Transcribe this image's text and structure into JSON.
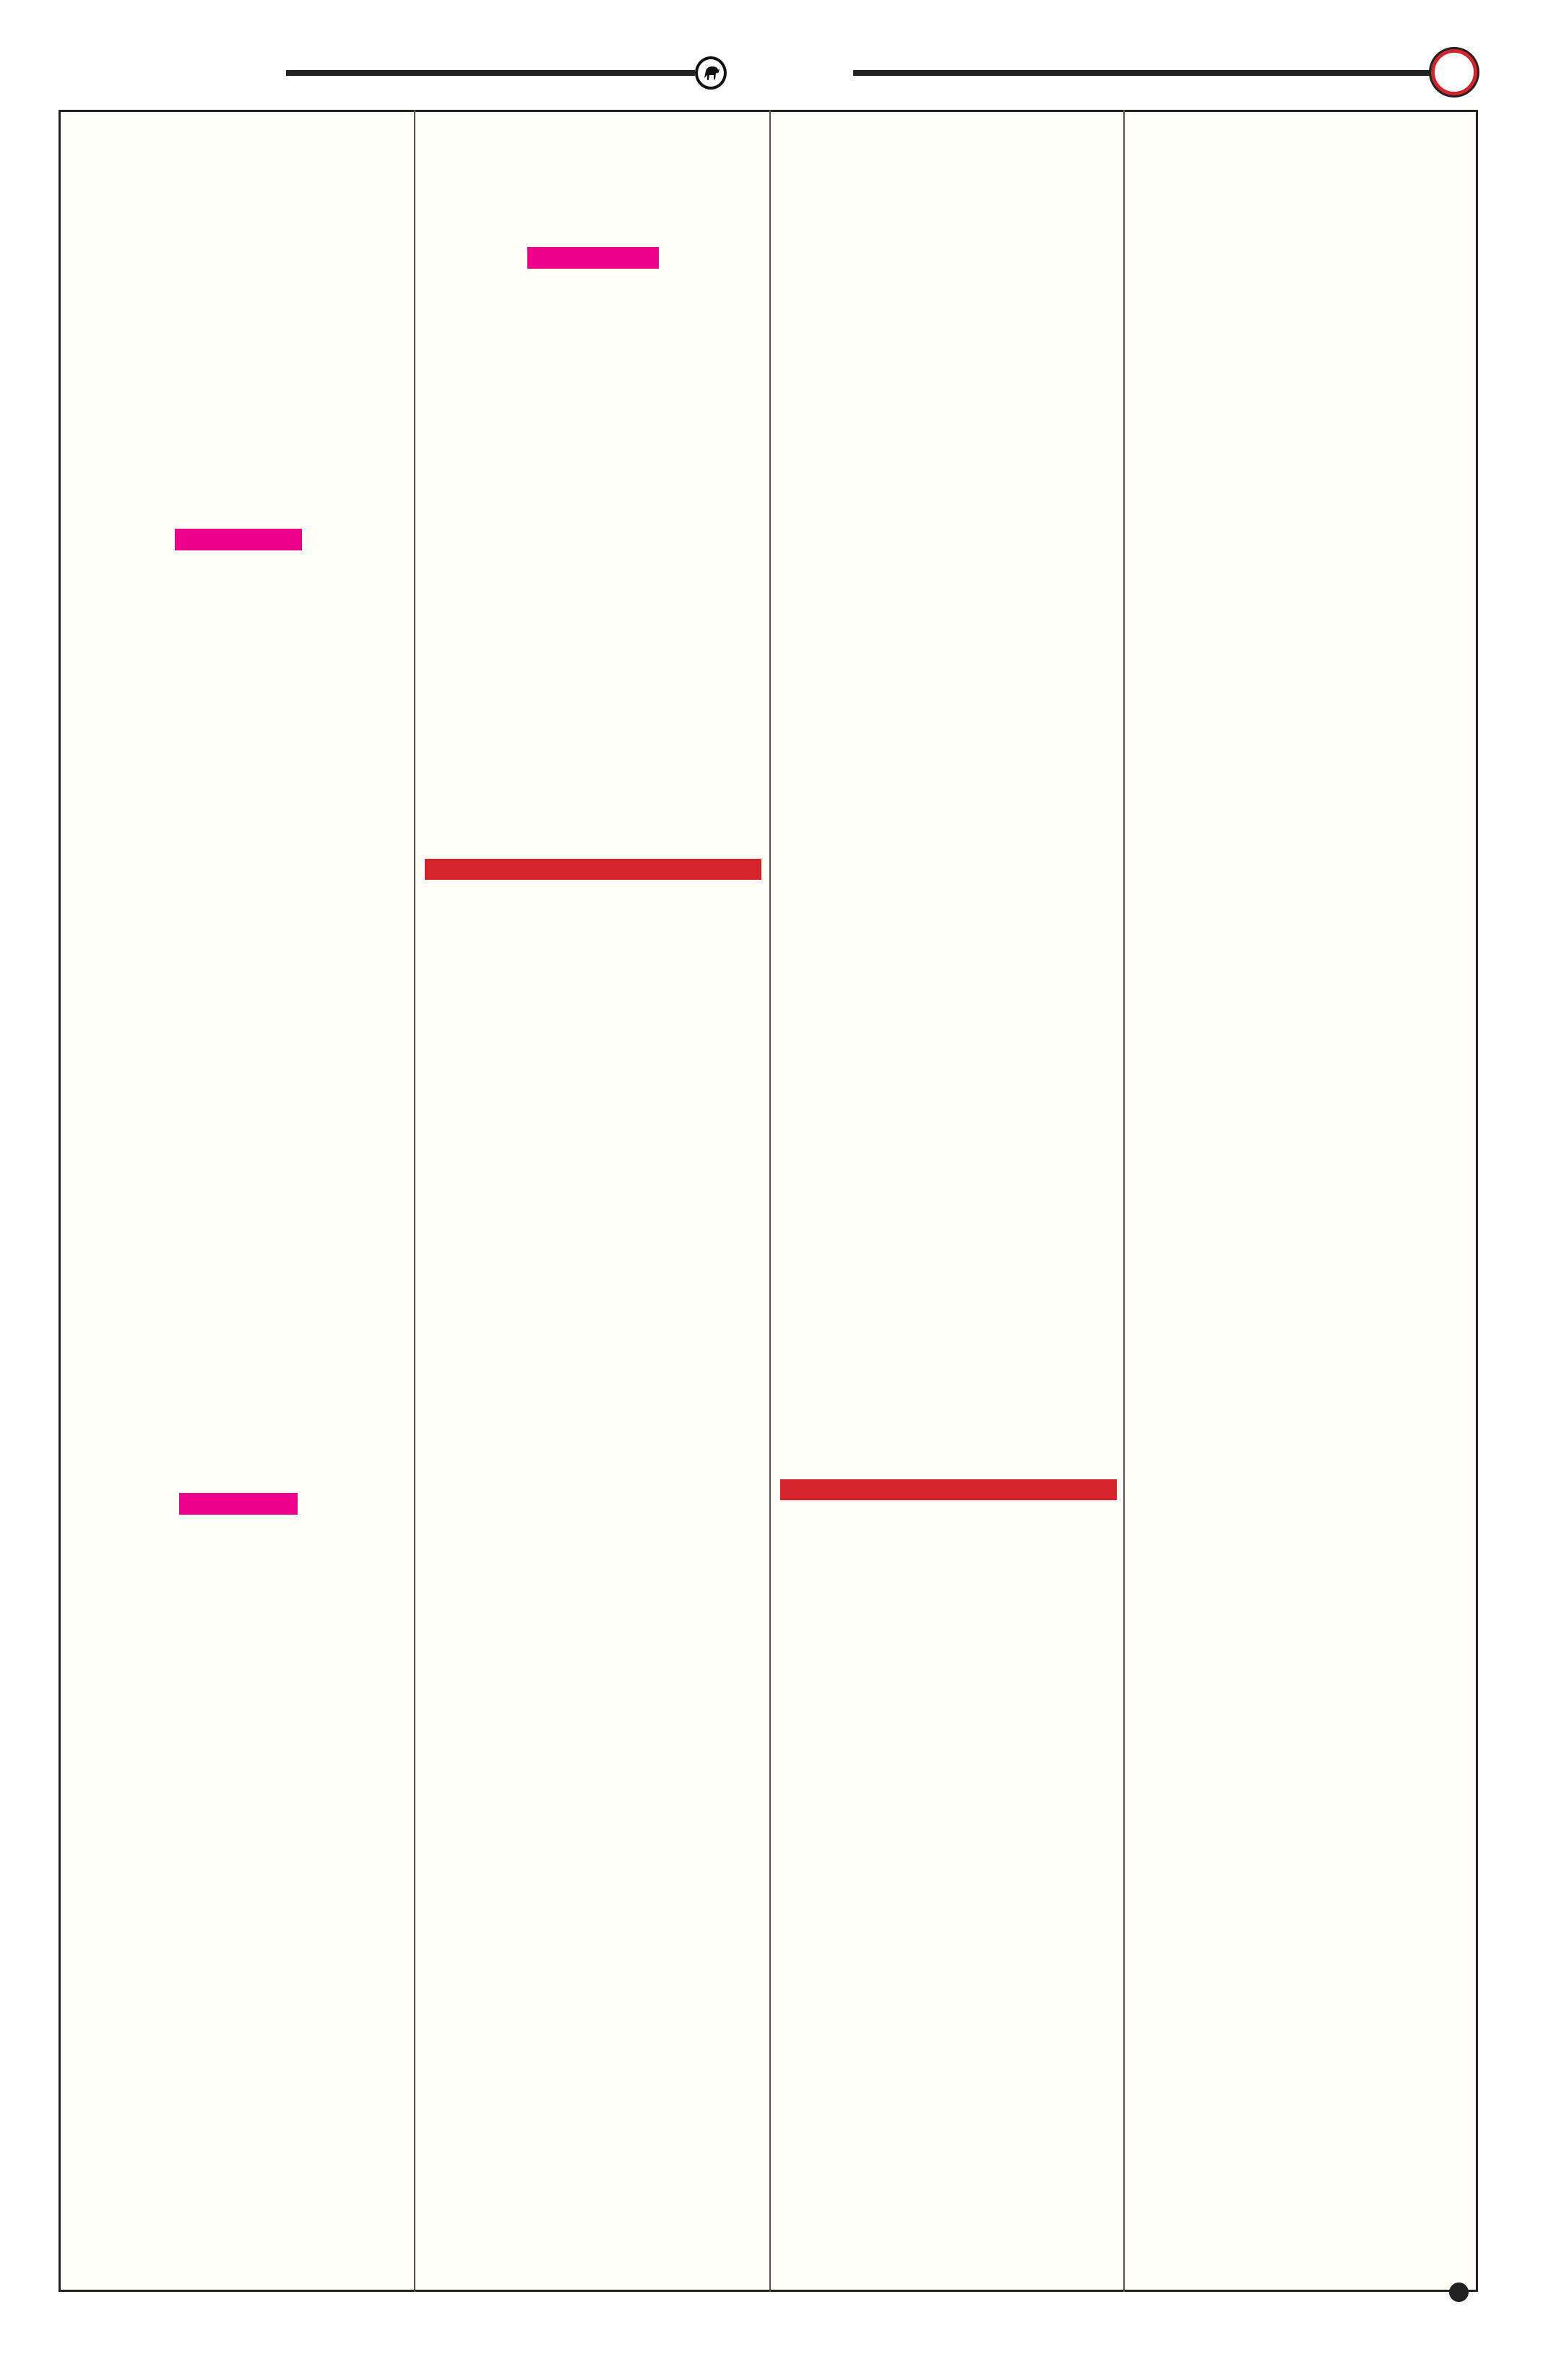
{
  "page": {
    "background_color": "#fffdf5",
    "frame_color": "#222222"
  },
  "header": {
    "logo_icon": "bull-emblem-icon",
    "corner_icon": "red-ring-icon"
  },
  "colors": {
    "magenta_bar": "#ec008c",
    "red_bar": "#d4232b"
  },
  "footer": {
    "marker_icon": "black-dot-icon"
  }
}
